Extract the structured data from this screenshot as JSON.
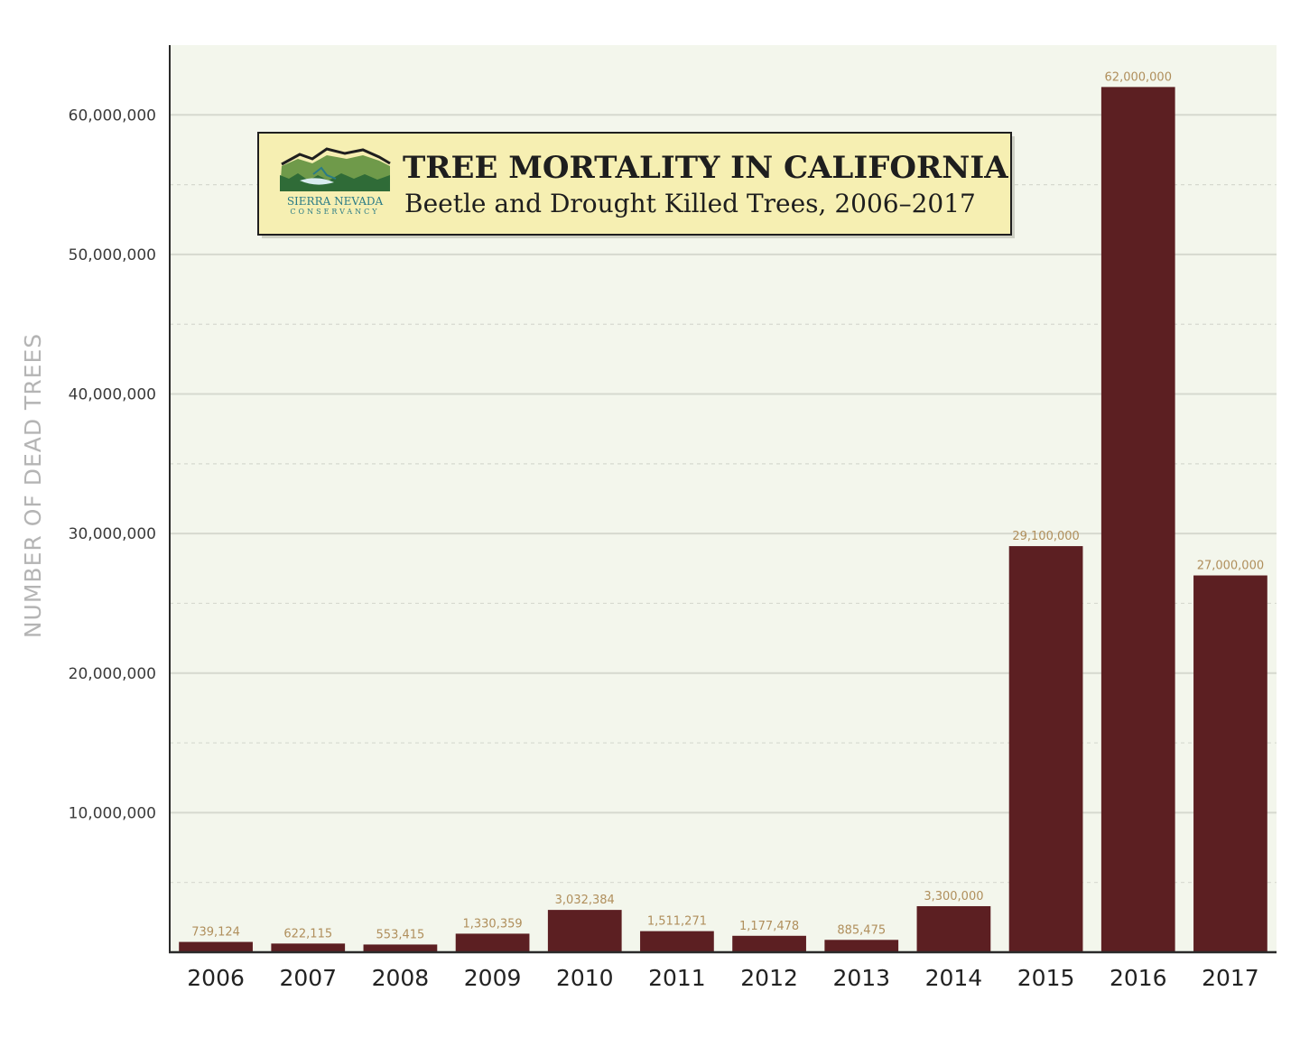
{
  "chart_data": {
    "type": "bar",
    "title": "TREE MORTALITY IN CALIFORNIA",
    "subtitle": "Beetle and Drought Killed Trees, 2006–2017",
    "xlabel": "",
    "ylabel": "NUMBER OF DEAD TREES",
    "categories": [
      "2006",
      "2007",
      "2008",
      "2009",
      "2010",
      "2011",
      "2012",
      "2013",
      "2014",
      "2015",
      "2016",
      "2017"
    ],
    "values": [
      739124,
      622115,
      553415,
      1330359,
      3032384,
      1511271,
      1177478,
      885475,
      3300000,
      29100000,
      62000000,
      27000000
    ],
    "data_labels": [
      "739,124",
      "622,115",
      "553,415",
      "1,330,359",
      "3,032,384",
      "1,511,271",
      "1,177,478",
      "885,475",
      "3,300,000",
      "29,100,000",
      "62,000,000",
      "27,000,000"
    ],
    "ylim": [
      0,
      65000000
    ],
    "yticks": [
      10000000,
      20000000,
      30000000,
      40000000,
      50000000,
      60000000
    ],
    "ytick_labels": [
      "10,000,000",
      "20,000,000",
      "30,000,000",
      "40,000,000",
      "50,000,000",
      "60,000,000"
    ],
    "minor_gridlines": [
      5000000,
      15000000,
      25000000,
      35000000,
      45000000,
      55000000
    ],
    "grid": true,
    "legend": "none"
  },
  "logo": {
    "name": "SIERRA NEVADA",
    "subname": "CONSERVANCY"
  },
  "colors": {
    "bar": "#5c1f22",
    "plot_bg": "#f3f6ec",
    "title_box_bg": "#f6efb2",
    "data_label": "#b08f5c",
    "grid": "#d6d9cf"
  }
}
